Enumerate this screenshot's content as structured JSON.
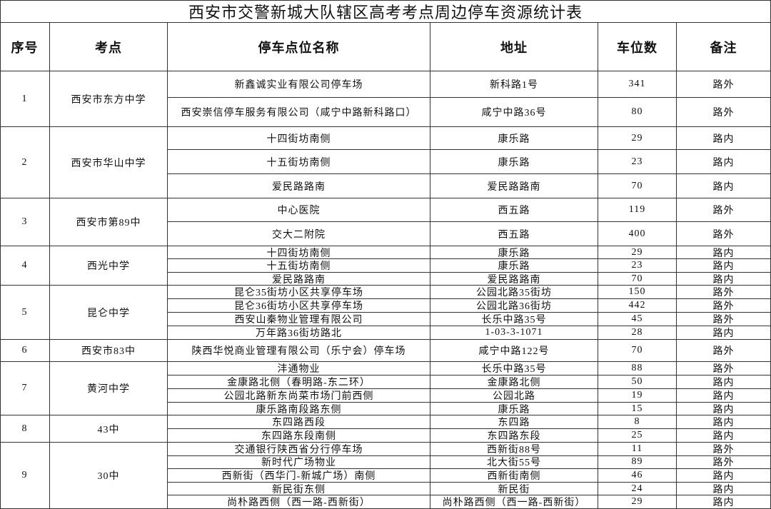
{
  "title": "西安市交警新城大队辖区高考考点周边停车资源统计表",
  "table": {
    "header": [
      "序号",
      "考点",
      "停车点位名称",
      "地址",
      "车位数",
      "备注"
    ],
    "groups": [
      {
        "no": 1,
        "school": "西安市东方中学",
        "rows": [
          [
            "新鑫诚实业有限公司停车场",
            "新科路1号",
            341,
            "路外"
          ],
          [
            "西安崇信停车服务有限公司（咸宁中路新科路口）",
            "咸宁中路36号",
            80,
            "路外"
          ]
        ]
      },
      {
        "no": 2,
        "school": "西安市华山中学",
        "rows": [
          [
            "十四街坊南侧",
            "康乐路",
            29,
            "路内"
          ],
          [
            "十五街坊南侧",
            "康乐路",
            23,
            "路内"
          ],
          [
            "爱民路路南",
            "爱民路路南",
            70,
            "路内"
          ]
        ]
      },
      {
        "no": 3,
        "school": "西安市第89中",
        "rows": [
          [
            "中心医院",
            "西五路",
            119,
            "路外"
          ],
          [
            "交大二附院",
            "西五路",
            400,
            "路外"
          ]
        ]
      },
      {
        "no": 4,
        "school": "西光中学",
        "rows": [
          [
            "十四街坊南侧",
            "康乐路",
            29,
            "路内"
          ],
          [
            "十五街坊南侧",
            "康乐路",
            23,
            "路内"
          ],
          [
            "爱民路路南",
            "爱民路路南",
            70,
            "路内"
          ]
        ]
      },
      {
        "no": 5,
        "school": "昆仑中学",
        "rows": [
          [
            "昆仑35街坊小区共享停车场",
            "公园北路35街坊",
            150,
            "路外"
          ],
          [
            "昆仑36街坊小区共享停车场",
            "公园北路36街坊",
            442,
            "路外"
          ],
          [
            "西安山秦物业管理有限公司",
            "长乐中路35号",
            45,
            "路外"
          ],
          [
            "万年路36街坊路北",
            "1-03-3-1071",
            28,
            "路内"
          ]
        ]
      },
      {
        "no": 6,
        "school": "西安市83中",
        "rows": [
          [
            "陕西华悦商业管理有限公司（乐宁会）停车场",
            "咸宁中路122号",
            70,
            "路外"
          ]
        ]
      },
      {
        "no": 7,
        "school": "黄河中学",
        "rows": [
          [
            "沣通物业",
            "长乐中路35号",
            88,
            "路外"
          ],
          [
            "金康路北侧（春明路-东二环）",
            "金康路北侧",
            50,
            "路内"
          ],
          [
            "公园北路新东尚菜市场门前西侧",
            "公园北路",
            19,
            "路内"
          ],
          [
            "康乐路南段路东侧",
            "康乐路",
            15,
            "路内"
          ]
        ]
      },
      {
        "no": 8,
        "school": "43中",
        "rows": [
          [
            "东四路西段",
            "东四路",
            8,
            "路内"
          ],
          [
            "东四路东段南侧",
            "东四路东段",
            25,
            "路内"
          ]
        ]
      },
      {
        "no": 9,
        "school": "30中",
        "rows": [
          [
            "交通银行陕西省分行停车场",
            "西新街88号",
            11,
            "路外"
          ],
          [
            "新时代广场物业",
            "北大街55号",
            89,
            "路外"
          ],
          [
            "西新街（西华门-新城广场）南侧",
            "西新街南侧",
            46,
            "路内"
          ],
          [
            "新民街东侧",
            "新民街",
            24,
            "路内"
          ],
          [
            "尚朴路西侧（西一路-西新街）",
            "尚朴路西侧（西一路-西新街）",
            29,
            "路内"
          ]
        ]
      }
    ]
  }
}
